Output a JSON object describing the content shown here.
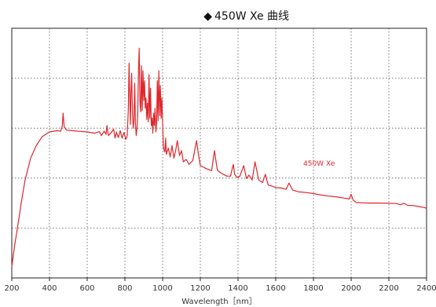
{
  "chart_data": {
    "type": "line",
    "title": "450W Xe 曲线",
    "title_marker": "◆",
    "xlabel": "Wavelength［nm］",
    "ylabel": "",
    "xlim": [
      200,
      2400
    ],
    "x_ticks": [
      200,
      400,
      600,
      800,
      1000,
      1200,
      1400,
      1600,
      1800,
      2000,
      2200,
      2400
    ],
    "y_gridlines": 5,
    "grid": true,
    "grid_style": "dotted",
    "y_scale": "relative (unlabeled)",
    "series": [
      {
        "name": "450W Xe",
        "color": "#e0262b",
        "x": [
          200,
          215,
          230,
          250,
          270,
          300,
          330,
          360,
          400,
          440,
          460,
          468,
          472,
          478,
          490,
          520,
          560,
          600,
          640,
          665,
          675,
          690,
          700,
          705,
          712,
          725,
          740,
          748,
          755,
          765,
          775,
          785,
          795,
          805,
          812,
          818,
          822,
          826,
          829,
          832,
          836,
          840,
          844,
          848,
          852,
          856,
          860,
          864,
          868,
          872,
          876,
          880,
          884,
          888,
          892,
          896,
          900,
          904,
          908,
          912,
          916,
          920,
          924,
          928,
          932,
          936,
          940,
          944,
          948,
          952,
          956,
          960,
          964,
          968,
          972,
          976,
          980,
          984,
          988,
          992,
          996,
          1000,
          1004,
          1008,
          1012,
          1016,
          1020,
          1030,
          1040,
          1050,
          1060,
          1069,
          1078,
          1090,
          1100,
          1110,
          1125,
          1140,
          1160,
          1180,
          1190,
          1200,
          1220,
          1240,
          1260,
          1275,
          1290,
          1310,
          1340,
          1360,
          1375,
          1382,
          1395,
          1410,
          1430,
          1445,
          1458,
          1475,
          1490,
          1510,
          1530,
          1545,
          1560,
          1580,
          1600,
          1630,
          1655,
          1670,
          1690,
          1720,
          1760,
          1800,
          1840,
          1880,
          1920,
          1960,
          1990,
          2000,
          2010,
          2020,
          2030,
          2060,
          2100,
          2150,
          2200,
          2240,
          2260,
          2280,
          2300,
          2330,
          2360,
          2390,
          2400
        ],
        "y": [
          4.5,
          13.0,
          20.0,
          30.0,
          39.0,
          48.0,
          53.0,
          56.5,
          58.5,
          59.0,
          58.8,
          61.0,
          66.0,
          60.5,
          59.2,
          59.0,
          58.7,
          58.5,
          58.0,
          58.6,
          57.0,
          58.8,
          57.5,
          61.0,
          57.0,
          58.0,
          59.6,
          56.0,
          58.5,
          56.2,
          59.0,
          56.0,
          58.2,
          55.5,
          57.0,
          67.0,
          86.0,
          72.0,
          61.5,
          74.0,
          82.0,
          66.0,
          60.0,
          63.0,
          78.0,
          62.0,
          57.0,
          60.0,
          65.0,
          83.5,
          92.0,
          70.0,
          66.5,
          85.0,
          67.0,
          83.0,
          71.0,
          79.0,
          68.0,
          72.0,
          63.5,
          70.0,
          62.5,
          81.5,
          64.0,
          76.0,
          61.0,
          64.0,
          58.0,
          66.0,
          61.0,
          68.0,
          58.5,
          62.0,
          79.0,
          63.0,
          83.0,
          65.0,
          77.0,
          64.0,
          72.0,
          62.0,
          53.0,
          51.0,
          50.5,
          56.0,
          49.5,
          52.0,
          48.5,
          53.0,
          48.0,
          51.0,
          55.0,
          49.0,
          51.0,
          46.5,
          47.5,
          45.5,
          47.0,
          55.0,
          49.5,
          45.0,
          44.2,
          43.5,
          43.0,
          51.0,
          43.2,
          42.0,
          40.8,
          40.8,
          45.5,
          41.5,
          40.2,
          40.8,
          45.0,
          39.8,
          41.2,
          39.2,
          46.5,
          39.2,
          38.2,
          41.5,
          37.2,
          36.8,
          36.2,
          36.0,
          35.5,
          38.0,
          35.2,
          34.5,
          34.2,
          33.8,
          33.2,
          32.8,
          32.5,
          32.0,
          31.6,
          33.5,
          31.2,
          30.6,
          30.2,
          30.1,
          30.0,
          30.0,
          29.9,
          29.8,
          29.3,
          29.9,
          29.1,
          29.0,
          28.6,
          28.2,
          27.8
        ]
      }
    ],
    "annotation": "450W Xe"
  }
}
